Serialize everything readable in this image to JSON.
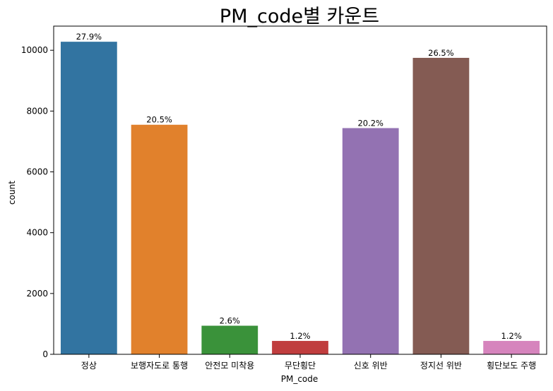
{
  "chart_data": {
    "type": "bar",
    "title": "PM_code별 카운트",
    "xlabel": "PM_code",
    "ylabel": "count",
    "categories": [
      "정상",
      "보행자도로 통행",
      "안전모 미착용",
      "무단횡단",
      "신호 위반",
      "정지선 위반",
      "횡단보도 주행"
    ],
    "values": [
      10280,
      7550,
      940,
      440,
      7440,
      9750,
      440
    ],
    "data_labels": [
      "27.9%",
      "20.5%",
      "2.6%",
      "1.2%",
      "20.2%",
      "26.5%",
      "1.2%"
    ],
    "colors": [
      "#3274a1",
      "#e1812c",
      "#3a923a",
      "#c03d3e",
      "#9372b2",
      "#845b53",
      "#d684bd"
    ],
    "yticks": [
      0,
      2000,
      4000,
      6000,
      8000,
      10000
    ],
    "ylim": [
      0,
      10794
    ],
    "grid": false,
    "legend": "none"
  }
}
